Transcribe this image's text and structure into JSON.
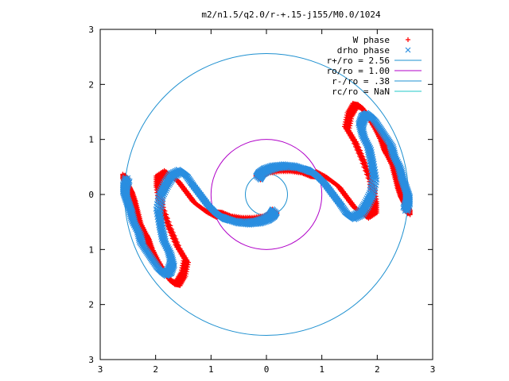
{
  "chart_data": {
    "type": "scatter",
    "title": "m2/n1.5/q2.0/r-+.15-j155/M0.0/1024",
    "xlabel": "",
    "ylabel": "",
    "xlim": [
      -3,
      3
    ],
    "ylim": [
      -3,
      3
    ],
    "x_tick_labels": [
      "3",
      "2",
      "1",
      "0",
      "1",
      "2",
      "3"
    ],
    "y_tick_labels": [
      "3",
      "2",
      "1",
      "0",
      "1",
      "2",
      "3"
    ],
    "grid": false,
    "legend_position": "top-right",
    "colors": {
      "w_phase": "#ff0000",
      "drho_phase": "#2a8ee0",
      "r_plus": "#1e90d0",
      "ro": "#b000c8",
      "r_minus": "#1e90d0",
      "rc": "#20c8c8"
    },
    "legend": [
      {
        "key": "w_phase",
        "label": "W phase",
        "marker": "+"
      },
      {
        "key": "drho_phase",
        "label": "drho phase",
        "marker": "x"
      },
      {
        "key": "r_plus",
        "label": "r+/ro = 2.56",
        "marker": "line"
      },
      {
        "key": "ro",
        "label": "ro/ro = 1.00",
        "marker": "line"
      },
      {
        "key": "r_minus",
        "label": "r-/ro = .38",
        "marker": "line"
      },
      {
        "key": "rc",
        "label": "rc/ro = NaN",
        "marker": "line"
      }
    ],
    "circles": [
      {
        "key": "r_plus",
        "radius": 2.56
      },
      {
        "key": "ro",
        "radius": 1.0
      },
      {
        "key": "r_minus",
        "radius": 0.38
      }
    ],
    "series": [
      {
        "name": "W phase",
        "key": "w_phase",
        "marker": "+",
        "x": [
          -0.15,
          -0.1,
          0.0,
          0.2,
          0.4,
          0.6,
          0.75,
          0.85,
          0.95,
          1.1,
          1.3,
          1.45,
          1.6,
          1.8,
          1.95,
          1.95,
          1.9,
          1.75,
          1.6,
          1.45,
          1.5,
          1.6,
          1.7,
          1.85,
          2.0,
          2.1,
          2.15,
          2.2,
          2.3,
          2.35,
          2.4,
          2.45,
          2.5,
          2.55,
          2.55
        ],
        "y": [
          0.3,
          0.38,
          0.42,
          0.45,
          0.45,
          0.42,
          0.36,
          0.35,
          0.38,
          0.3,
          0.15,
          -0.05,
          -0.25,
          -0.4,
          -0.3,
          -0.1,
          0.2,
          0.6,
          0.95,
          1.2,
          1.45,
          1.62,
          1.6,
          1.4,
          1.15,
          0.95,
          0.8,
          0.7,
          0.5,
          0.3,
          0.1,
          -0.05,
          -0.15,
          -0.25,
          -0.35
        ]
      },
      {
        "name": "W phase (lower arm)",
        "key": "w_phase",
        "marker": "+",
        "x": [
          0.15,
          0.1,
          0.0,
          -0.2,
          -0.4,
          -0.6,
          -0.75,
          -0.85,
          -0.95,
          -1.1,
          -1.3,
          -1.45,
          -1.6,
          -1.8,
          -1.95,
          -1.95,
          -1.9,
          -1.75,
          -1.6,
          -1.45,
          -1.5,
          -1.6,
          -1.7,
          -1.85,
          -2.0,
          -2.1,
          -2.15,
          -2.2,
          -2.3,
          -2.35,
          -2.4,
          -2.45,
          -2.5,
          -2.55,
          -2.55
        ],
        "y": [
          -0.3,
          -0.38,
          -0.42,
          -0.45,
          -0.45,
          -0.42,
          -0.36,
          -0.35,
          -0.38,
          -0.3,
          -0.15,
          0.05,
          0.25,
          0.4,
          0.3,
          0.1,
          -0.2,
          -0.6,
          -0.95,
          -1.2,
          -1.45,
          -1.62,
          -1.6,
          -1.4,
          -1.15,
          -0.95,
          -0.8,
          -0.7,
          -0.5,
          -0.3,
          -0.1,
          0.05,
          0.15,
          0.25,
          0.35
        ]
      },
      {
        "name": "drho phase",
        "key": "drho_phase",
        "marker": "x",
        "x": [
          -0.15,
          -0.1,
          0.0,
          0.15,
          0.35,
          0.55,
          0.7,
          0.8,
          0.9,
          1.05,
          1.2,
          1.35,
          1.45,
          1.55,
          1.7,
          1.8,
          1.9,
          1.95,
          1.9,
          1.85,
          1.75,
          1.7,
          1.75,
          1.85,
          1.95,
          2.05,
          2.15,
          2.25,
          2.3,
          2.4,
          2.45,
          2.5,
          2.55,
          2.55,
          2.5
        ],
        "y": [
          0.3,
          0.38,
          0.45,
          0.5,
          0.52,
          0.5,
          0.45,
          0.42,
          0.35,
          0.2,
          0.0,
          -0.2,
          -0.35,
          -0.42,
          -0.35,
          -0.2,
          0.0,
          0.3,
          0.6,
          0.85,
          1.05,
          1.25,
          1.4,
          1.45,
          1.35,
          1.2,
          1.05,
          0.9,
          0.7,
          0.5,
          0.3,
          0.15,
          0.0,
          -0.15,
          -0.3
        ]
      },
      {
        "name": "drho phase (lower arm)",
        "key": "drho_phase",
        "marker": "x",
        "x": [
          0.15,
          0.1,
          0.0,
          -0.15,
          -0.35,
          -0.55,
          -0.7,
          -0.8,
          -0.9,
          -1.05,
          -1.2,
          -1.35,
          -1.45,
          -1.55,
          -1.7,
          -1.8,
          -1.9,
          -1.95,
          -1.9,
          -1.85,
          -1.75,
          -1.7,
          -1.75,
          -1.85,
          -1.95,
          -2.05,
          -2.15,
          -2.25,
          -2.3,
          -2.4,
          -2.45,
          -2.5,
          -2.55,
          -2.55,
          -2.5
        ],
        "y": [
          -0.3,
          -0.38,
          -0.45,
          -0.5,
          -0.52,
          -0.5,
          -0.45,
          -0.42,
          -0.35,
          -0.2,
          0.0,
          0.2,
          0.35,
          0.42,
          0.35,
          0.2,
          0.0,
          -0.3,
          -0.6,
          -0.85,
          -1.05,
          -1.25,
          -1.4,
          -1.45,
          -1.35,
          -1.2,
          -1.05,
          -0.9,
          -0.7,
          -0.5,
          -0.3,
          -0.15,
          0.0,
          0.15,
          0.3
        ]
      }
    ]
  }
}
